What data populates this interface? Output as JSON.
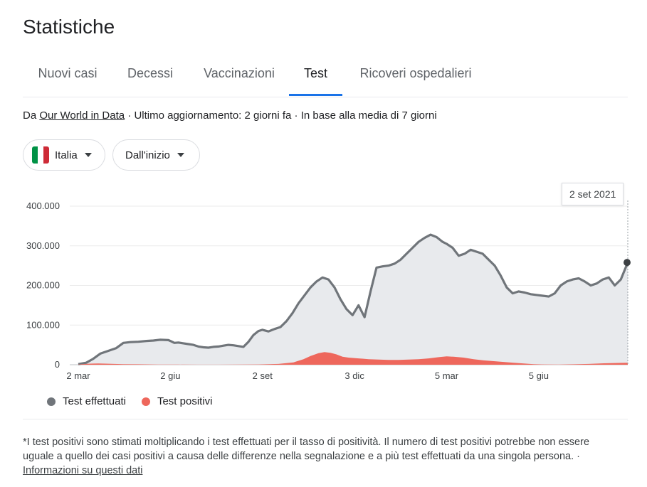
{
  "header": {
    "title": "Statistiche"
  },
  "tabs": [
    {
      "label": "Nuovi casi",
      "active": false
    },
    {
      "label": "Decessi",
      "active": false
    },
    {
      "label": "Vaccinazioni",
      "active": false
    },
    {
      "label": "Test",
      "active": true
    },
    {
      "label": "Ricoveri ospedalieri",
      "active": false
    }
  ],
  "source": {
    "prefix": "Da ",
    "link": "Our World in Data",
    "suffix": " · Ultimo aggiornamento: 2 giorni fa · In base alla media di 7 giorni"
  },
  "filters": {
    "country": {
      "label": "Italia",
      "flag_colors": [
        "#009246",
        "#ffffff",
        "#ce2b37"
      ]
    },
    "range": {
      "label": "Dall'inizio"
    }
  },
  "tooltip": {
    "date": "2 set 2021"
  },
  "chart_data": {
    "type": "area",
    "yticks": [
      "400.000",
      "300.000",
      "200.000",
      "100.000",
      "0"
    ],
    "ylim": [
      0,
      400000
    ],
    "xticks": [
      "2 mar",
      "2 giu",
      "2 set",
      "3 dic",
      "5 mar",
      "5 giu"
    ],
    "xtick_days": [
      0,
      92,
      184,
      276,
      368,
      460
    ],
    "xlim_days": [
      0,
      549
    ],
    "series": [
      {
        "name": "Test effettuati",
        "color": "#70757a",
        "fill": "#e8eaed",
        "x": [
          0,
          8,
          15,
          22,
          30,
          38,
          45,
          52,
          60,
          68,
          75,
          82,
          90,
          92,
          96,
          100,
          105,
          110,
          115,
          120,
          125,
          130,
          135,
          140,
          145,
          150,
          155,
          160,
          165,
          170,
          175,
          180,
          184,
          190,
          196,
          202,
          208,
          214,
          220,
          226,
          232,
          238,
          244,
          250,
          256,
          262,
          268,
          274,
          280,
          286,
          292,
          298,
          304,
          310,
          316,
          322,
          328,
          334,
          340,
          346,
          352,
          358,
          364,
          368,
          374,
          380,
          386,
          392,
          398,
          404,
          410,
          416,
          422,
          428,
          434,
          440,
          446,
          452,
          458,
          464,
          470,
          476,
          482,
          488,
          494,
          500,
          506,
          512,
          518,
          524,
          530,
          536,
          542,
          549
        ],
        "values": [
          1500,
          5000,
          15000,
          28000,
          35000,
          42000,
          55000,
          57000,
          58000,
          60000,
          61000,
          63000,
          62000,
          60000,
          55000,
          56000,
          54000,
          52000,
          50000,
          46000,
          44000,
          43000,
          45000,
          46000,
          48000,
          50000,
          49000,
          47000,
          45000,
          58000,
          75000,
          85000,
          88000,
          84000,
          90000,
          95000,
          110000,
          130000,
          155000,
          175000,
          195000,
          210000,
          220000,
          215000,
          195000,
          165000,
          140000,
          125000,
          150000,
          120000,
          185000,
          245000,
          248000,
          250000,
          255000,
          265000,
          280000,
          295000,
          310000,
          320000,
          328000,
          322000,
          310000,
          305000,
          295000,
          275000,
          280000,
          290000,
          285000,
          280000,
          265000,
          250000,
          225000,
          195000,
          180000,
          185000,
          182000,
          178000,
          176000,
          174000,
          172000,
          180000,
          200000,
          210000,
          215000,
          218000,
          210000,
          200000,
          205000,
          215000,
          220000,
          200000,
          215000,
          258000
        ]
      },
      {
        "name": "Test positivi",
        "color": "#ee675c",
        "fill": "#ee675c",
        "x": [
          0,
          10,
          20,
          30,
          45,
          60,
          80,
          100,
          120,
          140,
          160,
          180,
          200,
          215,
          225,
          232,
          240,
          246,
          252,
          258,
          264,
          270,
          280,
          290,
          300,
          310,
          320,
          330,
          340,
          350,
          360,
          368,
          375,
          385,
          395,
          405,
          415,
          425,
          435,
          445,
          455,
          465,
          480,
          495,
          510,
          525,
          540,
          549
        ],
        "values": [
          500,
          2500,
          3000,
          2500,
          1500,
          1000,
          500,
          300,
          200,
          200,
          300,
          800,
          2000,
          6000,
          14000,
          22000,
          29000,
          32000,
          30000,
          26000,
          20000,
          18000,
          16000,
          14000,
          13000,
          12000,
          12000,
          13000,
          14000,
          16000,
          19000,
          21000,
          20000,
          18000,
          14000,
          11000,
          9000,
          7000,
          5000,
          3000,
          1500,
          800,
          600,
          1000,
          2000,
          3500,
          4500,
          5000
        ]
      }
    ]
  },
  "legend": [
    {
      "label": "Test effettuati",
      "color": "#70757a"
    },
    {
      "label": "Test positivi",
      "color": "#ee675c"
    }
  ],
  "footnote": {
    "text": "*I test positivi sono stimati moltiplicando i test effettuati per il tasso di positività. Il numero di test positivi potrebbe non essere uguale a quello dei casi positivi a causa delle differenze nella segnalazione e a più test effettuati da una singola persona.",
    "separator": " · ",
    "link": "Informazioni su questi dati"
  }
}
